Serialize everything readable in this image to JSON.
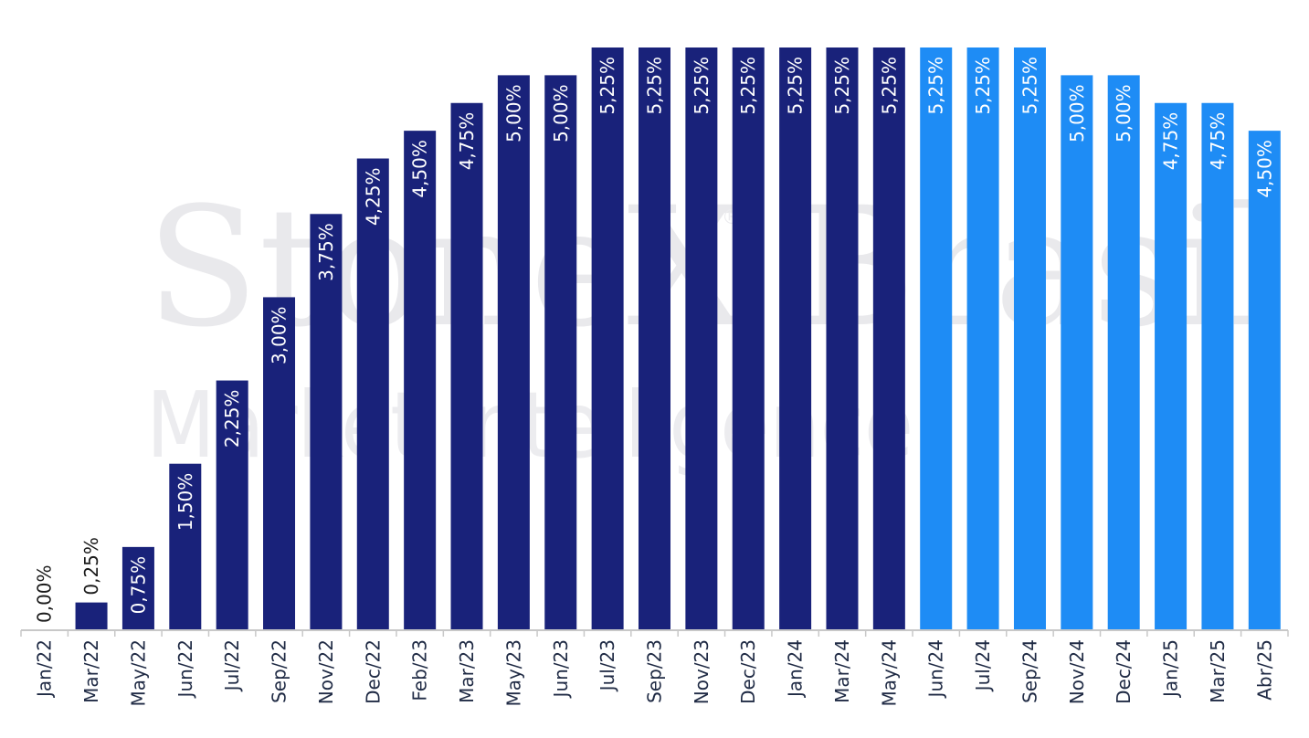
{
  "watermark": {
    "brand": "StoneX",
    "region": "Brasil",
    "registered": "®",
    "subtitle": "Market Intelligence"
  },
  "colors": {
    "historical": "#19227a",
    "projected": "#1e8cf5",
    "axis": "#c8c8c8",
    "label_inside": "#ffffff",
    "label_outside": "#1a1a1a",
    "tick_text": "#1f2a44"
  },
  "chart_data": {
    "type": "bar",
    "categories": [
      "Jan/22",
      "Mar/22",
      "May/22",
      "Jun/22",
      "Jul/22",
      "Sep/22",
      "Nov/22",
      "Dec/22",
      "Feb/23",
      "Mar/23",
      "May/23",
      "Jun/23",
      "Jul/23",
      "Sep/23",
      "Nov/23",
      "Dec/23",
      "Jan/24",
      "Mar/24",
      "May/24",
      "Jun/24",
      "Jul/24",
      "Sep/24",
      "Nov/24",
      "Dec/24",
      "Jan/25",
      "Mar/25",
      "Abr/25"
    ],
    "values": [
      0.0,
      0.25,
      0.75,
      1.5,
      2.25,
      3.0,
      3.75,
      4.25,
      4.5,
      4.75,
      5.0,
      5.0,
      5.25,
      5.25,
      5.25,
      5.25,
      5.25,
      5.25,
      5.25,
      5.25,
      5.25,
      5.25,
      5.0,
      5.0,
      4.75,
      4.75,
      4.5
    ],
    "labels": [
      "0,00%",
      "0,25%",
      "0,75%",
      "1,50%",
      "2,25%",
      "3,00%",
      "3,75%",
      "4,25%",
      "4,50%",
      "4,75%",
      "5,00%",
      "5,00%",
      "5,25%",
      "5,25%",
      "5,25%",
      "5,25%",
      "5,25%",
      "5,25%",
      "5,25%",
      "5,25%",
      "5,25%",
      "5,25%",
      "5,00%",
      "5,00%",
      "4,75%",
      "4,75%",
      "4,50%"
    ],
    "projected_from_index": 19,
    "ylim": [
      0,
      5.25
    ],
    "grid": false,
    "legend": "none",
    "title": "",
    "xlabel": "",
    "ylabel": ""
  }
}
